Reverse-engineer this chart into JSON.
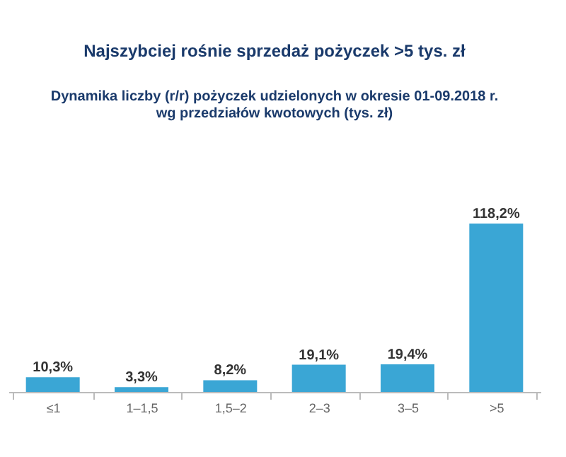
{
  "chart_data": {
    "type": "bar",
    "title": "Najszybciej rośnie sprzedaż pożyczek >5 tys. zł",
    "subtitle": "Dynamika liczby (r/r) pożyczek udzielonych w okresie 01-09.2018 r.\nwg przedziałów kwotowych (tys. zł)",
    "categories": [
      "≤1",
      "1–1,5",
      "1,5–2",
      "2–3",
      "3–5",
      ">5"
    ],
    "values": [
      10.3,
      3.3,
      8.2,
      19.1,
      19.4,
      118.2
    ],
    "value_labels": [
      "10,3%",
      "3,3%",
      "8,2%",
      "19,1%",
      "19,4%",
      "118,2%"
    ],
    "color": "#3aa6d5",
    "grid": false
  }
}
